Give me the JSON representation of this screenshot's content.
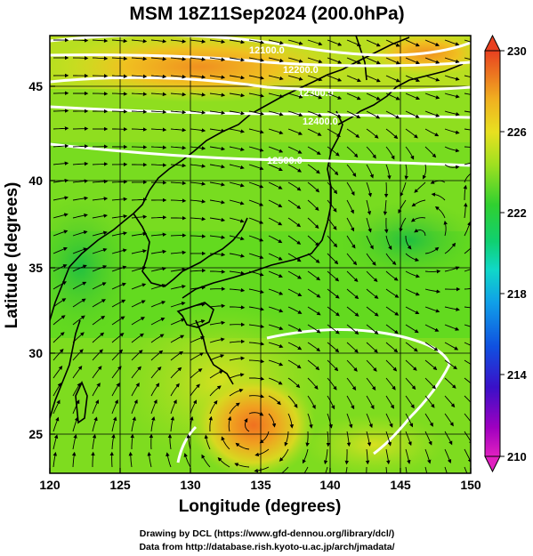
{
  "title": "MSM 18Z11Sep2024 (200.0hPa)",
  "x_axis": {
    "label": "Longitude (degrees)",
    "ticks": [
      "120",
      "125",
      "130",
      "135",
      "140",
      "145",
      "150"
    ]
  },
  "y_axis": {
    "label": "Latitude  (degrees)",
    "ticks": [
      "25",
      "30",
      "35",
      "40",
      "45"
    ]
  },
  "colorbar": {
    "ticks": [
      "230",
      "226",
      "222",
      "218",
      "214",
      "210"
    ],
    "min": 210,
    "max": 230,
    "colors": [
      "#e020c0",
      "#b000c0",
      "#5a00c8",
      "#2030d8",
      "#1070e8",
      "#10b8e0",
      "#10d8b0",
      "#10d060",
      "#50d820",
      "#a8e020",
      "#e8e020",
      "#f0c020",
      "#f09020",
      "#e85020"
    ]
  },
  "contour_labels": [
    "12100.0",
    "12200.0",
    "12300.0",
    "12400.0",
    "12500.0"
  ],
  "credits": {
    "line1": "Drawing by DCL (https://www.gfd-dennou.org/library/dcl/)",
    "line2": "Data from http://database.rish.kyoto-u.ac.jp/arch/jmadata/"
  },
  "map": {
    "lon_range": [
      120,
      150
    ],
    "lat_range": [
      22.4,
      47.6
    ],
    "field": "temperature (K) with streamlines and geopotential height contours",
    "warm_regions": [
      "typhoon center near 134.5E 25.5N",
      "northern band near 130E 46N"
    ]
  }
}
